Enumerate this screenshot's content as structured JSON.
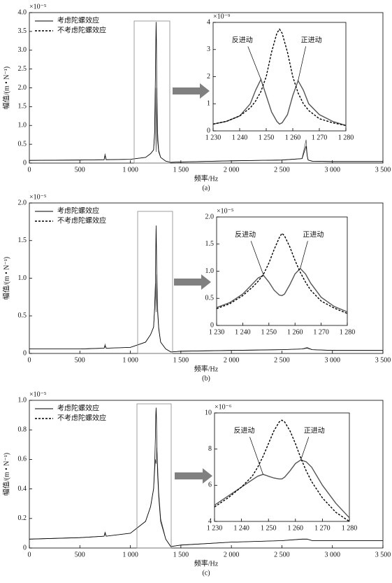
{
  "chart_data": [
    {
      "type": "line",
      "caption": "(a)",
      "x_label": "频率/Hz",
      "y_label": "幅值/(m • N⁻¹)",
      "y_multiplier": "×10⁻⁵",
      "legend": "upper left",
      "x": [
        0,
        500,
        740,
        750,
        760,
        1000,
        1150,
        1200,
        1230,
        1240,
        1248,
        1252,
        1255,
        1258,
        1262,
        1270,
        1280,
        1300,
        1350,
        1400,
        1500,
        2000,
        2500,
        2700,
        2740,
        2750,
        2760,
        2800,
        3000,
        3500
      ],
      "xlim": [
        0,
        3500
      ],
      "ylim": [
        0,
        4
      ],
      "xticks": [
        0,
        500,
        {
          "value": 1000,
          "label": "1 000"
        },
        {
          "value": 1500,
          "label": "1 500"
        },
        {
          "value": 2000,
          "label": "2 000"
        },
        {
          "value": 2500,
          "label": "2 500"
        },
        {
          "value": 3000,
          "label": "3 000"
        },
        {
          "value": 3500,
          "label": "3 500"
        }
      ],
      "yticks": [
        0,
        0.5,
        {
          "value": 1,
          "label": "1.0"
        },
        1.5,
        {
          "value": 2,
          "label": "2.0"
        },
        2.5,
        {
          "value": 3,
          "label": "3.0"
        },
        3.5,
        {
          "value": 4,
          "label": "4.0"
        }
      ],
      "series": [
        {
          "name": "考虑陀螺效应",
          "color": "#555555",
          "style": "solid",
          "values": [
            0.07,
            0.08,
            0.09,
            0.25,
            0.09,
            0.1,
            0.15,
            0.25,
            0.35,
            0.8,
            2.0,
            0.8,
            0.3,
            0.8,
            2.0,
            0.8,
            0.35,
            0.15,
            0.05,
            0.02,
            0.03,
            0.06,
            0.08,
            0.12,
            0.62,
            0.2,
            0.08,
            0.05,
            0.04,
            0.04
          ]
        },
        {
          "name": "不考虑陀螺效应",
          "color": "#000000",
          "style": "dashed",
          "values": [
            0.07,
            0.08,
            0.09,
            0.2,
            0.09,
            0.1,
            0.15,
            0.25,
            0.35,
            0.8,
            2.3,
            3.2,
            3.75,
            3.2,
            1.5,
            0.6,
            0.3,
            0.15,
            0.05,
            0.02,
            0.03,
            0.06,
            0.08,
            0.12,
            0.45,
            0.2,
            0.08,
            0.05,
            0.04,
            0.04
          ]
        }
      ]
    },
    {
      "type": "line",
      "y_multiplier": "×10⁻⁹",
      "annotations": [
        "反进动",
        "正进动"
      ],
      "x": [
        1230,
        1235,
        1240,
        1244,
        1246,
        1248,
        1250,
        1252,
        1254,
        1255,
        1256,
        1258,
        1260,
        1262,
        1264,
        1266,
        1270,
        1275,
        1280
      ],
      "xlim": [
        1230,
        1280
      ],
      "ylim": [
        0,
        4
      ],
      "xticks": [
        {
          "value": 1230,
          "label": "1 230"
        },
        {
          "value": 1240,
          "label": "1 240"
        },
        {
          "value": 1250,
          "label": "1 250"
        },
        {
          "value": 1260,
          "label": "1 260"
        },
        {
          "value": 1270,
          "label": "1 270"
        },
        {
          "value": 1280,
          "label": "1 280"
        }
      ],
      "yticks": [
        0,
        1,
        2,
        3,
        4
      ],
      "series": [
        {
          "color": "#555555",
          "style": "solid",
          "values": [
            0.25,
            0.35,
            0.55,
            1.0,
            1.5,
            1.9,
            1.3,
            0.7,
            0.35,
            0.25,
            0.3,
            0.6,
            1.3,
            1.85,
            1.5,
            1.0,
            0.6,
            0.35,
            0.2
          ]
        },
        {
          "color": "#000000",
          "style": "dashed",
          "values": [
            0.25,
            0.35,
            0.55,
            0.85,
            1.1,
            1.45,
            2.0,
            2.9,
            3.6,
            3.75,
            3.6,
            2.9,
            2.0,
            1.4,
            1.0,
            0.75,
            0.45,
            0.3,
            0.2
          ]
        }
      ]
    },
    {
      "type": "line",
      "caption": "(b)",
      "x_label": "频率/Hz",
      "y_label": "幅值/(m • N⁻¹)",
      "y_multiplier": "×10⁻⁵",
      "legend": "upper left",
      "x": [
        0,
        500,
        740,
        750,
        760,
        1000,
        1150,
        1200,
        1230,
        1240,
        1248,
        1252,
        1255,
        1258,
        1262,
        1270,
        1280,
        1300,
        1350,
        1400,
        1500,
        2000,
        2500,
        2700,
        2750,
        2800,
        3000,
        3500
      ],
      "xlim": [
        0,
        3500
      ],
      "ylim": [
        0,
        2
      ],
      "xticks": [
        0,
        500,
        {
          "value": 1000,
          "label": "1 000"
        },
        {
          "value": 1500,
          "label": "1 500"
        },
        {
          "value": 2000,
          "label": "2 000"
        },
        {
          "value": 2500,
          "label": "2 500"
        },
        {
          "value": 3000,
          "label": "3 000"
        },
        {
          "value": 3500,
          "label": "3 500"
        }
      ],
      "yticks": [
        0,
        0.5,
        {
          "value": 1,
          "label": "1.0"
        },
        1.5,
        {
          "value": 2,
          "label": "2.0"
        }
      ],
      "series": [
        {
          "name": "考虑陀螺效应",
          "color": "#555555",
          "style": "solid",
          "values": [
            0.06,
            0.06,
            0.07,
            0.12,
            0.07,
            0.08,
            0.15,
            0.25,
            0.35,
            0.6,
            0.93,
            0.7,
            0.55,
            0.7,
            1.05,
            0.6,
            0.35,
            0.15,
            0.06,
            0.02,
            0.03,
            0.04,
            0.05,
            0.06,
            0.08,
            0.05,
            0.04,
            0.04
          ]
        },
        {
          "name": "不考虑陀螺效应",
          "color": "#000000",
          "style": "dashed",
          "values": [
            0.06,
            0.06,
            0.07,
            0.1,
            0.07,
            0.08,
            0.15,
            0.25,
            0.35,
            0.6,
            0.9,
            1.4,
            1.7,
            1.4,
            0.95,
            0.55,
            0.33,
            0.15,
            0.06,
            0.02,
            0.03,
            0.04,
            0.05,
            0.06,
            0.07,
            0.05,
            0.04,
            0.04
          ]
        }
      ]
    },
    {
      "type": "line",
      "y_multiplier": "×10⁻⁵",
      "annotations": [
        "反进动",
        "正进动"
      ],
      "x": [
        1230,
        1235,
        1240,
        1244,
        1246,
        1248,
        1250,
        1252,
        1254,
        1255,
        1256,
        1258,
        1260,
        1262,
        1264,
        1266,
        1270,
        1275,
        1280
      ],
      "xlim": [
        1230,
        1280
      ],
      "ylim": [
        0,
        2
      ],
      "xticks": [
        {
          "value": 1230,
          "label": "1 230"
        },
        {
          "value": 1240,
          "label": "1 240"
        },
        {
          "value": 1250,
          "label": "1 250"
        },
        {
          "value": 1260,
          "label": "1 260"
        },
        {
          "value": 1270,
          "label": "1 270"
        },
        {
          "value": 1280,
          "label": "1 280"
        }
      ],
      "yticks": [
        0,
        0.5,
        {
          "value": 1,
          "label": "1.0"
        },
        1.5,
        {
          "value": 2,
          "label": "2.0"
        }
      ],
      "series": [
        {
          "color": "#555555",
          "style": "solid",
          "values": [
            0.33,
            0.42,
            0.58,
            0.78,
            0.88,
            0.92,
            0.8,
            0.65,
            0.56,
            0.55,
            0.58,
            0.75,
            0.95,
            1.05,
            0.95,
            0.78,
            0.52,
            0.35,
            0.25
          ]
        },
        {
          "color": "#000000",
          "style": "dashed",
          "values": [
            0.31,
            0.4,
            0.55,
            0.72,
            0.82,
            0.95,
            1.15,
            1.4,
            1.62,
            1.7,
            1.65,
            1.45,
            1.2,
            0.98,
            0.8,
            0.65,
            0.45,
            0.32,
            0.22
          ]
        }
      ]
    },
    {
      "type": "line",
      "caption": "(c)",
      "x_label": "频率/Hz",
      "y_label": "幅值/(m • N⁻¹)",
      "y_multiplier": "×10⁻⁵",
      "legend": "upper left",
      "x": [
        0,
        500,
        740,
        750,
        760,
        1000,
        1150,
        1200,
        1230,
        1240,
        1248,
        1252,
        1255,
        1258,
        1262,
        1270,
        1280,
        1300,
        1350,
        1400,
        1500,
        2000,
        2500,
        2700,
        2750,
        2800,
        3000,
        3500
      ],
      "xlim": [
        0,
        3500
      ],
      "ylim": [
        0,
        1
      ],
      "xticks": [
        0,
        500,
        {
          "value": 1000,
          "label": "1 000"
        },
        {
          "value": 1500,
          "label": "1 500"
        },
        {
          "value": 2000,
          "label": "2 000"
        },
        {
          "value": 2500,
          "label": "2 500"
        },
        {
          "value": 3000,
          "label": "3 000"
        },
        {
          "value": 3500,
          "label": "3 500"
        }
      ],
      "yticks": [
        0,
        0.2,
        0.4,
        0.6,
        0.8,
        {
          "value": 1,
          "label": "1.0"
        }
      ],
      "series": [
        {
          "name": "考虑陀螺效应",
          "color": "#555555",
          "style": "solid",
          "values": [
            0.06,
            0.07,
            0.08,
            0.11,
            0.08,
            0.1,
            0.18,
            0.28,
            0.4,
            0.52,
            0.6,
            0.58,
            0.57,
            0.6,
            0.68,
            0.55,
            0.38,
            0.2,
            0.06,
            0.01,
            0.02,
            0.04,
            0.05,
            0.06,
            0.06,
            0.05,
            0.05,
            0.05
          ]
        },
        {
          "name": "不考虑陀螺效应",
          "color": "#000000",
          "style": "dashed",
          "values": [
            0.06,
            0.07,
            0.08,
            0.1,
            0.08,
            0.1,
            0.18,
            0.28,
            0.4,
            0.55,
            0.75,
            0.9,
            0.95,
            0.88,
            0.7,
            0.5,
            0.35,
            0.18,
            0.06,
            0.01,
            0.02,
            0.04,
            0.05,
            0.06,
            0.06,
            0.05,
            0.05,
            0.05
          ]
        }
      ]
    },
    {
      "type": "line",
      "y_multiplier": "×10⁻⁶",
      "annotations": [
        "反进动",
        "正进动"
      ],
      "x": [
        1230,
        1235,
        1240,
        1244,
        1246,
        1248,
        1250,
        1252,
        1254,
        1255,
        1256,
        1258,
        1260,
        1262,
        1264,
        1266,
        1270,
        1275,
        1280
      ],
      "xlim": [
        1230,
        1280
      ],
      "ylim": [
        4,
        10
      ],
      "xticks": [
        {
          "value": 1230,
          "label": "1 230"
        },
        {
          "value": 1240,
          "label": "1 240"
        },
        {
          "value": 1250,
          "label": "1 250"
        },
        {
          "value": 1260,
          "label": "1 260"
        },
        {
          "value": 1270,
          "label": "1 270"
        },
        {
          "value": 1280,
          "label": "1 280"
        }
      ],
      "yticks": [
        4,
        6,
        8,
        10
      ],
      "series": [
        {
          "color": "#555555",
          "style": "solid",
          "values": [
            4.9,
            5.4,
            5.9,
            6.3,
            6.5,
            6.6,
            6.5,
            6.4,
            6.35,
            6.35,
            6.45,
            6.8,
            7.2,
            7.4,
            7.3,
            7.0,
            6.0,
            5.0,
            4.2
          ]
        },
        {
          "color": "#000000",
          "style": "dashed",
          "values": [
            4.8,
            5.3,
            5.9,
            6.5,
            7.0,
            7.6,
            8.3,
            9.0,
            9.5,
            9.6,
            9.5,
            9.0,
            8.3,
            7.5,
            6.8,
            6.2,
            5.3,
            4.5,
            4.0
          ]
        }
      ]
    }
  ]
}
